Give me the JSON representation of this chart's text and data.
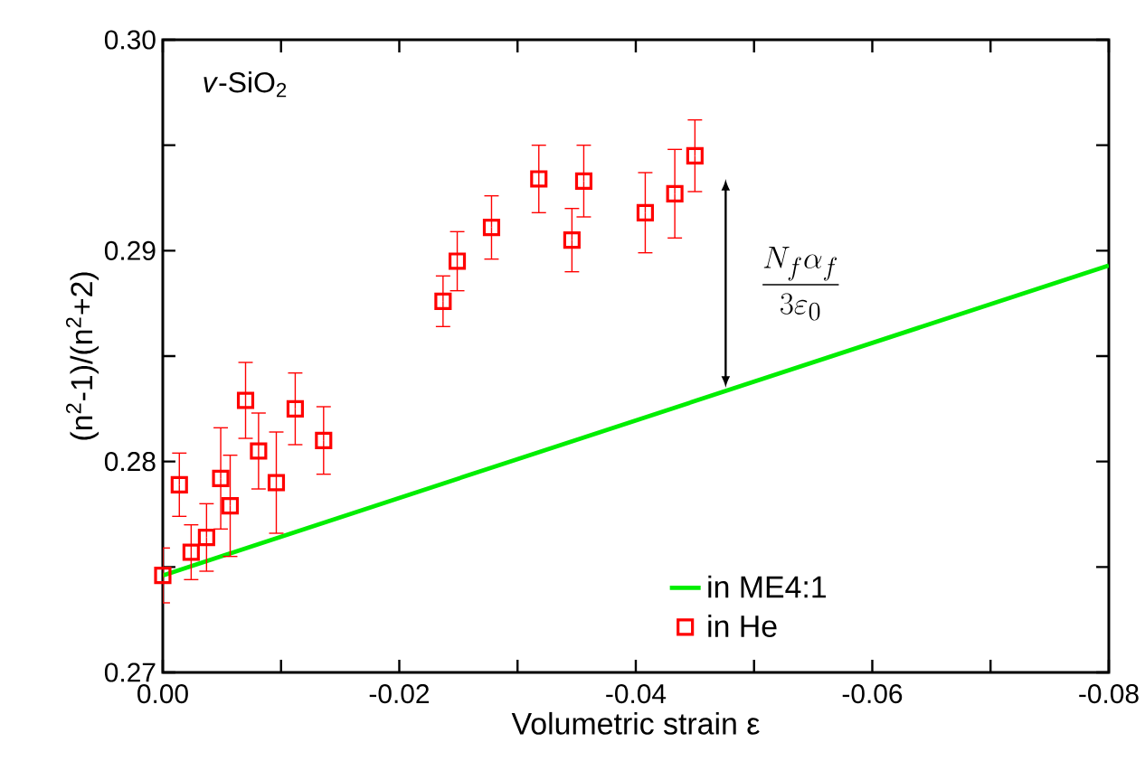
{
  "chart_data": {
    "type": "scatter",
    "xlabel": "Volumetric strain ε",
    "ylabel": "(n$^{2}$-1)/(n$^{2}$+2)",
    "annotations": [
      "*v*-SiO$_{2}$",
      "\\frac{N_f\\alpha_f}{3\\varepsilon_0}"
    ],
    "xlim": [
      0,
      -0.08
    ],
    "ylim": [
      0.27,
      0.3
    ],
    "xticks": [
      {
        "value": 0,
        "label": "0.00"
      },
      {
        "value": -0.01,
        "label": null
      },
      -0.02,
      {
        "value": -0.03,
        "label": null
      },
      -0.04,
      {
        "value": -0.05,
        "label": null
      },
      -0.06,
      {
        "value": -0.07,
        "label": null
      },
      -0.08
    ],
    "yticks": [
      0.27,
      {
        "value": 0.275,
        "label": null
      },
      0.28,
      {
        "value": 0.285,
        "label": null
      },
      0.29,
      {
        "value": 0.295,
        "label": null
      },
      {
        "value": 0.3,
        "label": "0.30"
      }
    ],
    "legend": "bottom right",
    "grid": false,
    "series": [
      {
        "name": "in ME4:1",
        "type": "line",
        "color": "#00ee00",
        "marker": "none",
        "line_style": "solid",
        "x": [
          0,
          -0.08
        ],
        "values": [
          0.2746,
          0.2893
        ]
      },
      {
        "name": "in He",
        "color": "#ff0000",
        "marker": "square",
        "x": [
          0,
          -0.0014,
          -0.0024,
          -0.0037,
          -0.0049,
          -0.0057,
          -0.007,
          -0.0081,
          -0.0096,
          -0.0112,
          -0.0136,
          -0.0237,
          -0.0249,
          -0.0278,
          -0.0318,
          -0.0346,
          -0.0356,
          -0.0408,
          -0.0433,
          -0.045
        ],
        "values": [
          0.2746,
          0.2789,
          0.2757,
          0.2764,
          0.2792,
          0.2779,
          0.2829,
          0.2805,
          0.279,
          0.2825,
          0.281,
          0.2876,
          0.2895,
          0.2911,
          0.2934,
          0.2905,
          0.2933,
          0.2918,
          0.2927,
          0.2945
        ],
        "errors": [
          0.0013,
          0.0015,
          0.0013,
          0.0016,
          0.0024,
          0.0024,
          0.0018,
          0.0018,
          0.0024,
          0.0017,
          0.0016,
          0.0012,
          0.0014,
          0.0015,
          0.0016,
          0.0015,
          0.0017,
          0.0019,
          0.0021,
          0.0017
        ]
      }
    ]
  }
}
